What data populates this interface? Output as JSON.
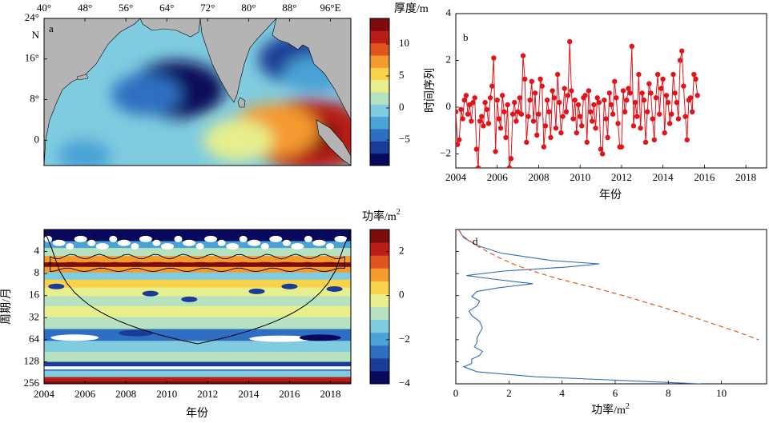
{
  "colors": {
    "land": "#b4b4b4",
    "series_red": "#e0141b",
    "spectrum_blue": "#2c6eb5",
    "significance_orange": "#e05a1c",
    "axis": "#000000",
    "colormap": [
      "#08085c",
      "#1a3c96",
      "#2f6fc1",
      "#4aa2d6",
      "#7fcce0",
      "#b6e2c2",
      "#e6ef8c",
      "#f8d24a",
      "#f49a2e",
      "#e2541f",
      "#b81d18",
      "#7d0c0c"
    ]
  },
  "chart_data": [
    {
      "id": "a",
      "type": "heatmap",
      "panel_letter": "a",
      "colorbar_title": "厚度/m",
      "colorbar_ticks": [
        "10",
        "5",
        "0",
        "−5"
      ],
      "colorbar_range": [
        -9,
        14
      ],
      "x_ticks": [
        "40°",
        "48°",
        "56°",
        "64°",
        "72°",
        "80°",
        "88°",
        "96°E"
      ],
      "y_ticks": [
        "24°",
        "N",
        "16°",
        "8°",
        "0"
      ],
      "xlim_lon": [
        40,
        100
      ],
      "ylim_lat": [
        -5,
        24
      ],
      "anomaly_blobs": [
        {
          "lon": 66,
          "lat": 10,
          "value": -8
        },
        {
          "lon": 60,
          "lat": 9,
          "value": -4
        },
        {
          "lon": 90,
          "lat": 16,
          "value": -6
        },
        {
          "lon": 93,
          "lat": 13,
          "value": -3
        },
        {
          "lon": 92,
          "lat": 1,
          "value": 12
        },
        {
          "lon": 85,
          "lat": 2,
          "value": 7
        },
        {
          "lon": 78,
          "lat": 0,
          "value": 4
        },
        {
          "lon": 52,
          "lat": 0,
          "value": -1
        },
        {
          "lon": 48,
          "lat": -3,
          "value": -1.5
        }
      ]
    },
    {
      "id": "b",
      "type": "line",
      "panel_letter": "b",
      "ylabel": "时间序列",
      "xlabel": "年份",
      "xlim": [
        2004,
        2019
      ],
      "ylim": [
        -2.6,
        4
      ],
      "x_ticks": [
        "2004",
        "2006",
        "2008",
        "2010",
        "2012",
        "2014",
        "2016",
        "2018"
      ],
      "y_ticks": [
        "4",
        "2",
        "0",
        "−2"
      ],
      "series": [
        {
          "start_year": 2004.0,
          "step_years": 0.0833,
          "values": [
            -0.2,
            -1.6,
            -1.4,
            -0.1,
            -0.5,
            0.3,
            0.5,
            -0.3,
            0.1,
            -0.6,
            0.2,
            0.4,
            -1.8,
            -2.6,
            -0.6,
            -0.4,
            -0.8,
            0.2,
            -0.1,
            -0.7,
            0.4,
            0.9,
            2.1,
            -1.9,
            0.3,
            -0.5,
            -0.9,
            0.5,
            -0.2,
            -1.3,
            0.1,
            -2.6,
            -2.2,
            -0.3,
            0.2,
            -0.6,
            -0.2,
            0.4,
            -0.3,
            2.2,
            1.2,
            -1.5,
            -0.4,
            0.3,
            1.1,
            -0.6,
            0.6,
            -1.2,
            -0.3,
            1.2,
            0.9,
            -1.7,
            -0.8,
            0.3,
            -0.2,
            -1.3,
            0.7,
            0.4,
            -0.9,
            1.4,
            0.2,
            -1.1,
            -0.4,
            0.8,
            -0.2,
            0.5,
            2.8,
            0.7,
            -0.5,
            0.3,
            -1.1,
            0.1,
            -0.4,
            -0.8,
            0.4,
            0.5,
            -1.5,
            0.7,
            -0.2,
            -0.6,
            0.1,
            -0.9,
            0.4,
            0.2,
            -1.8,
            -2.0,
            0.3,
            -0.5,
            -1.3,
            0.6,
            0.1,
            -0.3,
            1.1,
            0.4,
            -0.7,
            -1.7,
            -1.7,
            0.7,
            -0.2,
            0.3,
            0.8,
            0.6,
            2.6,
            -0.8,
            0.2,
            -0.4,
            1.4,
            -0.9,
            0.6,
            0.3,
            -1.5,
            -0.2,
            1.0,
            0.6,
            -0.5,
            -1.4,
            0.4,
            1.4,
            -0.3,
            0.8,
            1.2,
            -1.1,
            0.5,
            0.2,
            -0.7,
            -0.3,
            1.4,
            0.6,
            0.2,
            -0.5,
            2.0,
            2.4,
            0.9,
            -0.4,
            -1.4,
            0.3,
            0.4,
            -0.2,
            1.4,
            1.2,
            0.5
          ]
        }
      ]
    },
    {
      "id": "c",
      "type": "heatmap",
      "panel_letter": "c",
      "xlabel": "年份",
      "ylabel": "周期/月",
      "colorbar_title": "功率/m",
      "colorbar_title_sup": "2",
      "colorbar_ticks": [
        "2",
        "0",
        "−2",
        "−4"
      ],
      "colorbar_range": [
        -4,
        3
      ],
      "xlim": [
        2004,
        2019
      ],
      "y_ticks": [
        "4",
        "8",
        "16",
        "32",
        "64",
        "128",
        "256"
      ],
      "x_ticks": [
        "2004",
        "2006",
        "2008",
        "2010",
        "2012",
        "2014",
        "2016",
        "2018"
      ],
      "bands": [
        {
          "period": 2.6,
          "value": -3.5
        },
        {
          "period": 3.2,
          "value": -1.8
        },
        {
          "period": 4.0,
          "value": -0.6
        },
        {
          "period": 5.3,
          "value": 1.2
        },
        {
          "period": 6.0,
          "value": 2.6
        },
        {
          "period": 7.0,
          "value": 1.0
        },
        {
          "period": 8.5,
          "value": -1.3
        },
        {
          "period": 11.0,
          "value": 0.6
        },
        {
          "period": 14.0,
          "value": -0.4
        },
        {
          "period": 19.0,
          "value": -0.8
        },
        {
          "period": 26.0,
          "value": -0.3
        },
        {
          "period": 38.0,
          "value": -0.9
        },
        {
          "period": 55.0,
          "value": -2.4
        },
        {
          "period": 80.0,
          "value": -1.5
        },
        {
          "period": 110.0,
          "value": -0.8
        },
        {
          "period": 150.0,
          "value": -3.0
        },
        {
          "period": 190.0,
          "value": -1.2
        },
        {
          "period": 225.0,
          "value": 2.2
        },
        {
          "period": 250.0,
          "value": 3.0
        }
      ]
    },
    {
      "id": "d",
      "type": "line",
      "panel_letter": "d",
      "xlabel": "功率/m",
      "xlabel_sup": "2",
      "xlim": [
        0,
        11.7
      ],
      "x_ticks": [
        "0",
        "2",
        "4",
        "6",
        "8",
        "10"
      ],
      "ylim_period": [
        2,
        256
      ],
      "series": [
        {
          "kind": "global_wavelet_spectrum",
          "period": [
            2.0,
            2.6,
            3.3,
            4.2,
            5.3,
            5.9,
            6.5,
            7.4,
            8.5,
            9.5,
            11.0,
            12.5,
            14.0,
            16.5,
            19.0,
            22.0,
            26.0,
            30.0,
            36.0,
            44.0,
            52.0,
            60.0,
            70.0,
            80.0,
            92.0,
            105.0,
            118.0,
            135.0,
            150.0,
            175.0,
            205.0,
            256.0
          ],
          "power": [
            0.1,
            0.3,
            0.8,
            1.7,
            3.6,
            5.4,
            4.2,
            1.8,
            0.4,
            1.4,
            2.9,
            1.6,
            0.8,
            0.6,
            0.9,
            0.8,
            0.5,
            0.6,
            0.9,
            1.0,
            0.9,
            0.8,
            0.8,
            0.7,
            1.0,
            0.9,
            0.6,
            0.6,
            0.3,
            0.8,
            3.0,
            9.2
          ]
        },
        {
          "kind": "significance",
          "period": [
            2.0,
            2.5,
            3.0,
            3.5,
            4.2,
            5.0,
            6.0,
            7.0,
            8.0,
            9.5,
            11.0,
            13.0,
            16.0,
            20.0,
            25.0,
            32.0,
            40.0,
            50.0,
            64.0
          ],
          "power": [
            0.1,
            0.3,
            0.6,
            0.9,
            1.3,
            1.7,
            2.2,
            2.7,
            3.2,
            3.9,
            4.6,
            5.4,
            6.3,
            7.2,
            8.1,
            9.0,
            9.8,
            10.6,
            11.4
          ]
        }
      ]
    }
  ]
}
